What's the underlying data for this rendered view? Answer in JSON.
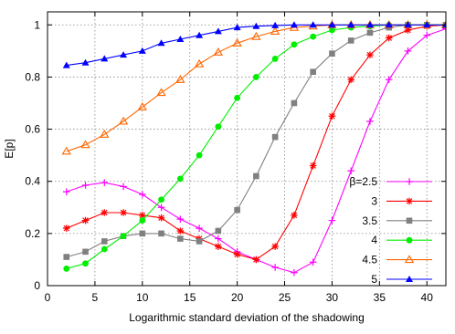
{
  "chart_data": {
    "type": "line",
    "xlabel": "Logarithmic standard deviation of the shadowing",
    "ylabel": "E[p]",
    "xlim": [
      0,
      42
    ],
    "ylim": [
      0,
      1.05
    ],
    "xticks": [
      0,
      5,
      10,
      15,
      20,
      25,
      30,
      35,
      40
    ],
    "yticks": [
      0,
      0.2,
      0.4,
      0.6,
      0.8,
      1
    ],
    "grid": true,
    "legend_position": "right",
    "x": [
      2,
      4,
      6,
      8,
      10,
      12,
      14,
      16,
      18,
      20,
      22,
      24,
      26,
      28,
      30,
      32,
      34,
      36,
      38,
      40,
      42
    ],
    "series": [
      {
        "name": "β=2.5",
        "color": "#ff00ff",
        "marker": "plus",
        "values": [
          0.36,
          0.385,
          0.395,
          0.38,
          0.35,
          0.3,
          0.255,
          0.22,
          0.18,
          0.13,
          0.1,
          0.07,
          0.05,
          0.09,
          0.25,
          0.44,
          0.63,
          0.79,
          0.9,
          0.96,
          0.985
        ]
      },
      {
        "name": "3",
        "color": "#ff0000",
        "marker": "star",
        "values": [
          0.22,
          0.25,
          0.28,
          0.28,
          0.27,
          0.26,
          0.21,
          0.18,
          0.15,
          0.12,
          0.1,
          0.15,
          0.27,
          0.46,
          0.65,
          0.79,
          0.885,
          0.95,
          0.98,
          0.995,
          1.0
        ]
      },
      {
        "name": "3.5",
        "color": "#808080",
        "marker": "square",
        "values": [
          0.11,
          0.13,
          0.17,
          0.19,
          0.2,
          0.2,
          0.18,
          0.17,
          0.21,
          0.29,
          0.42,
          0.57,
          0.7,
          0.82,
          0.89,
          0.94,
          0.97,
          0.99,
          1.0,
          1.0,
          1.0
        ]
      },
      {
        "name": "4",
        "color": "#00ee00",
        "marker": "circle",
        "values": [
          0.065,
          0.085,
          0.14,
          0.19,
          0.25,
          0.33,
          0.41,
          0.5,
          0.61,
          0.72,
          0.8,
          0.87,
          0.925,
          0.955,
          0.98,
          0.99,
          0.995,
          1.0,
          1.0,
          1.0,
          1.0
        ]
      },
      {
        "name": "4.5",
        "color": "#ff6600",
        "marker": "triangle-open",
        "values": [
          0.515,
          0.54,
          0.58,
          0.63,
          0.685,
          0.74,
          0.79,
          0.85,
          0.895,
          0.93,
          0.955,
          0.975,
          0.99,
          0.995,
          1.0,
          1.0,
          1.0,
          1.0,
          1.0,
          1.0,
          1.0
        ]
      },
      {
        "name": "5",
        "color": "#0000ff",
        "marker": "triangle-filled",
        "values": [
          0.845,
          0.855,
          0.87,
          0.885,
          0.9,
          0.93,
          0.945,
          0.96,
          0.975,
          0.99,
          0.995,
          0.998,
          1.0,
          1.0,
          1.0,
          1.0,
          1.0,
          1.0,
          1.0,
          1.0,
          1.0
        ]
      }
    ]
  }
}
